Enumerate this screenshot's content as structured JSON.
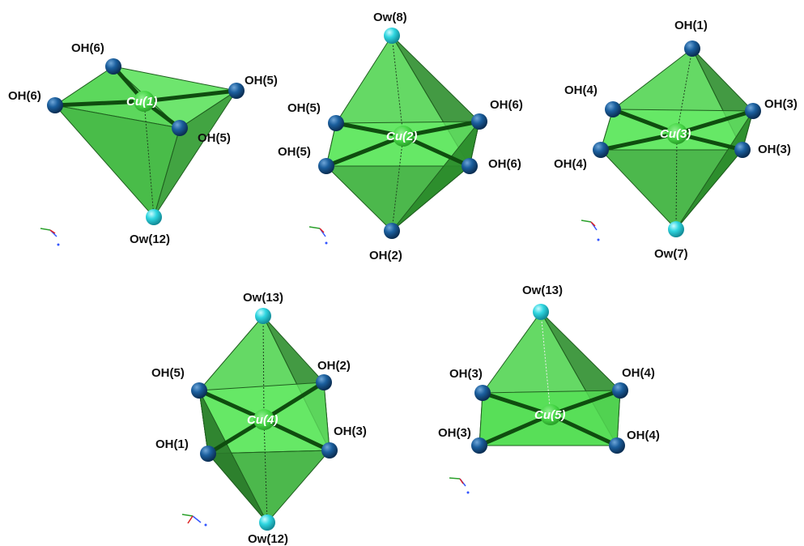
{
  "colors": {
    "face": "#3fd13f",
    "face_dark": "#2a8f2a",
    "edge": "#1f5e1f",
    "bond": "#0f4d0f",
    "oh_atom": "#1b5f9e",
    "ow_atom": "#2fd6e0",
    "cu_atom": "#45d645"
  },
  "polyhedra": [
    {
      "center": "Cu(1)",
      "ligands": [
        "OH(6)",
        "OH(6)",
        "OH(5)",
        "OH(5)",
        "Ow(12)"
      ]
    },
    {
      "center": "Cu(2)",
      "ligands": [
        "Ow(8)",
        "OH(5)",
        "OH(5)",
        "OH(6)",
        "OH(6)",
        "OH(2)"
      ]
    },
    {
      "center": "Cu(3)",
      "ligands": [
        "OH(1)",
        "OH(4)",
        "OH(4)",
        "OH(3)",
        "OH(3)",
        "Ow(7)"
      ]
    },
    {
      "center": "Cu(4)",
      "ligands": [
        "Ow(13)",
        "OH(5)",
        "OH(1)",
        "OH(2)",
        "OH(3)",
        "Ow(12)"
      ]
    },
    {
      "center": "Cu(5)",
      "ligands": [
        "Ow(13)",
        "OH(3)",
        "OH(3)",
        "OH(4)",
        "OH(4)"
      ]
    }
  ]
}
